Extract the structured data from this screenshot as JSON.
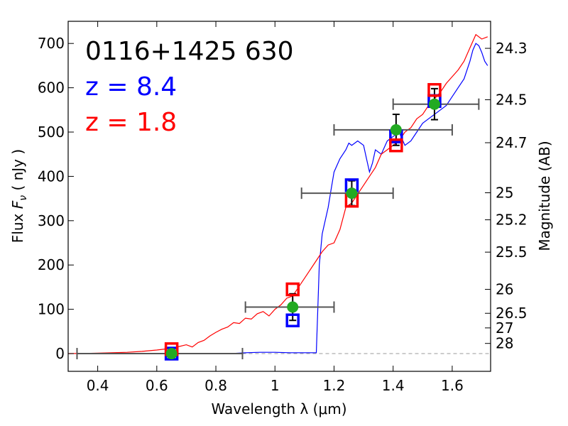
{
  "chart_data": {
    "type": "line",
    "annotations": [
      {
        "text": "0116+1425 630",
        "color": "#000000"
      },
      {
        "text": "z = 8.4",
        "color": "#0000ff"
      },
      {
        "text": "z = 1.8",
        "color": "#ff0000"
      }
    ],
    "xlabel": "Wavelength  λ (μm)",
    "ylabel": "Flux  F_ν  ( nJy )",
    "ylabel_parts": {
      "pre": "Flux  ",
      "var": "F",
      "sub": "ν",
      "post": "  ( nJy )"
    },
    "ylabel_right": "Magnitude (AB)",
    "xlim": [
      0.3,
      1.73
    ],
    "ylim": [
      -40,
      750
    ],
    "xticks": [
      {
        "value": 0.4,
        "label": "0.4"
      },
      {
        "value": 0.6,
        "label": "0.6"
      },
      {
        "value": 0.8,
        "label": "0.8"
      },
      {
        "value": 1.0,
        "label": "1"
      },
      {
        "value": 1.2,
        "label": "1.2"
      },
      {
        "value": 1.4,
        "label": "1.4"
      },
      {
        "value": 1.6,
        "label": "1.6"
      }
    ],
    "yticks": [
      {
        "value": 0,
        "label": "0"
      },
      {
        "value": 100,
        "label": "100"
      },
      {
        "value": 200,
        "label": "200"
      },
      {
        "value": 300,
        "label": "300"
      },
      {
        "value": 400,
        "label": "400"
      },
      {
        "value": 500,
        "label": "500"
      },
      {
        "value": 600,
        "label": "600"
      },
      {
        "value": 700,
        "label": "700"
      }
    ],
    "mag_ticks": [
      {
        "flux": 689,
        "label": "24.3"
      },
      {
        "flux": 573,
        "label": "24.5"
      },
      {
        "flux": 476,
        "label": "24.7"
      },
      {
        "flux": 363,
        "label": "25"
      },
      {
        "flux": 302,
        "label": "25.2"
      },
      {
        "flux": 229,
        "label": "25.5"
      },
      {
        "flux": 145,
        "label": "26"
      },
      {
        "flux": 91,
        "label": "26.5"
      },
      {
        "flux": 58,
        "label": "27"
      },
      {
        "flux": 23,
        "label": "28"
      }
    ],
    "zero_line": {
      "from": 0.89,
      "to": 1.73,
      "value": 0
    },
    "series": [
      {
        "name": "z = 8.4 template",
        "color": "#0000ff",
        "x": [
          0.75,
          0.85,
          0.9,
          0.95,
          1.0,
          1.05,
          1.1,
          1.14,
          1.145,
          1.15,
          1.16,
          1.17,
          1.18,
          1.19,
          1.2,
          1.22,
          1.24,
          1.25,
          1.26,
          1.28,
          1.3,
          1.31,
          1.32,
          1.33,
          1.34,
          1.36,
          1.38,
          1.4,
          1.42,
          1.44,
          1.46,
          1.48,
          1.5,
          1.52,
          1.54,
          1.56,
          1.58,
          1.6,
          1.62,
          1.64,
          1.66,
          1.67,
          1.68,
          1.69,
          1.7,
          1.71,
          1.72
        ],
        "y": [
          0,
          0,
          2,
          3,
          3,
          2,
          2,
          2,
          100,
          200,
          270,
          300,
          330,
          370,
          410,
          440,
          460,
          475,
          470,
          480,
          470,
          440,
          410,
          430,
          460,
          450,
          480,
          490,
          500,
          470,
          480,
          500,
          520,
          530,
          540,
          550,
          560,
          580,
          600,
          620,
          660,
          685,
          700,
          695,
          680,
          660,
          650
        ]
      },
      {
        "name": "z = 1.8 template",
        "color": "#ff0000",
        "x": [
          0.3,
          0.4,
          0.5,
          0.55,
          0.6,
          0.65,
          0.7,
          0.72,
          0.74,
          0.76,
          0.78,
          0.8,
          0.82,
          0.84,
          0.86,
          0.88,
          0.9,
          0.92,
          0.94,
          0.96,
          0.98,
          1.0,
          1.02,
          1.04,
          1.06,
          1.08,
          1.1,
          1.12,
          1.14,
          1.16,
          1.18,
          1.2,
          1.22,
          1.24,
          1.26,
          1.28,
          1.3,
          1.32,
          1.34,
          1.36,
          1.38,
          1.4,
          1.42,
          1.44,
          1.46,
          1.48,
          1.5,
          1.52,
          1.54,
          1.56,
          1.58,
          1.6,
          1.62,
          1.64,
          1.66,
          1.68,
          1.7,
          1.72
        ],
        "y": [
          0,
          1,
          3,
          5,
          8,
          12,
          20,
          15,
          25,
          30,
          40,
          48,
          55,
          60,
          70,
          68,
          80,
          78,
          90,
          95,
          85,
          100,
          110,
          125,
          130,
          150,
          170,
          190,
          210,
          230,
          245,
          250,
          280,
          330,
          340,
          360,
          380,
          400,
          420,
          450,
          460,
          470,
          480,
          500,
          510,
          530,
          540,
          560,
          575,
          590,
          610,
          625,
          640,
          660,
          690,
          720,
          710,
          715
        ]
      }
    ],
    "filters": [
      {
        "x": 0.65,
        "xmin": 0.33,
        "xmax": 0.89,
        "flux": 0,
        "err": 0,
        "model_blue": 0,
        "model_red": 10
      },
      {
        "x": 1.06,
        "xmin": 0.9,
        "xmax": 1.2,
        "flux": 105,
        "err": 30,
        "model_blue": 75,
        "model_red": 145
      },
      {
        "x": 1.26,
        "xmin": 1.09,
        "xmax": 1.4,
        "flux": 362,
        "err": 28,
        "model_blue": 380,
        "model_red": 345
      },
      {
        "x": 1.41,
        "xmin": 1.2,
        "xmax": 1.6,
        "flux": 505,
        "err": 35,
        "model_blue": 490,
        "model_red": 470
      },
      {
        "x": 1.54,
        "xmin": 1.4,
        "xmax": 1.69,
        "flux": 563,
        "err": 35,
        "model_blue": 570,
        "model_red": 595
      }
    ]
  }
}
